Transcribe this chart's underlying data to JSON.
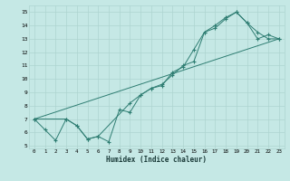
{
  "title": "",
  "xlabel": "Humidex (Indice chaleur)",
  "bg_color": "#c5e8e5",
  "grid_color": "#aed4d0",
  "line_color": "#2e7d72",
  "xlim": [
    -0.5,
    23.5
  ],
  "ylim": [
    4.8,
    15.5
  ],
  "xticks": [
    0,
    1,
    2,
    3,
    4,
    5,
    6,
    7,
    8,
    9,
    10,
    11,
    12,
    13,
    14,
    15,
    16,
    17,
    18,
    19,
    20,
    21,
    22,
    23
  ],
  "yticks": [
    5,
    6,
    7,
    8,
    9,
    10,
    11,
    12,
    13,
    14,
    15
  ],
  "line1_x": [
    0,
    1,
    2,
    3,
    4,
    5,
    6,
    7,
    8,
    9,
    10,
    11,
    12,
    13,
    14,
    15,
    16,
    17,
    18,
    19,
    20,
    21,
    22,
    23
  ],
  "line1_y": [
    7.0,
    6.2,
    5.4,
    7.0,
    6.5,
    5.5,
    5.7,
    5.3,
    7.7,
    7.5,
    8.8,
    9.3,
    9.5,
    10.5,
    10.9,
    12.2,
    13.5,
    14.0,
    14.6,
    15.0,
    14.2,
    13.0,
    13.3,
    13.0
  ],
  "line2_x": [
    0,
    3,
    4,
    5,
    6,
    9,
    10,
    11,
    12,
    13,
    14,
    15,
    16,
    17,
    18,
    19,
    20,
    21,
    22,
    23
  ],
  "line2_y": [
    7.0,
    7.0,
    6.5,
    5.5,
    5.7,
    8.2,
    8.8,
    9.3,
    9.6,
    10.3,
    11.0,
    11.3,
    13.5,
    13.8,
    14.5,
    15.0,
    14.2,
    13.5,
    13.0,
    13.0
  ],
  "line3_x": [
    0,
    23
  ],
  "line3_y": [
    7.0,
    13.0
  ]
}
